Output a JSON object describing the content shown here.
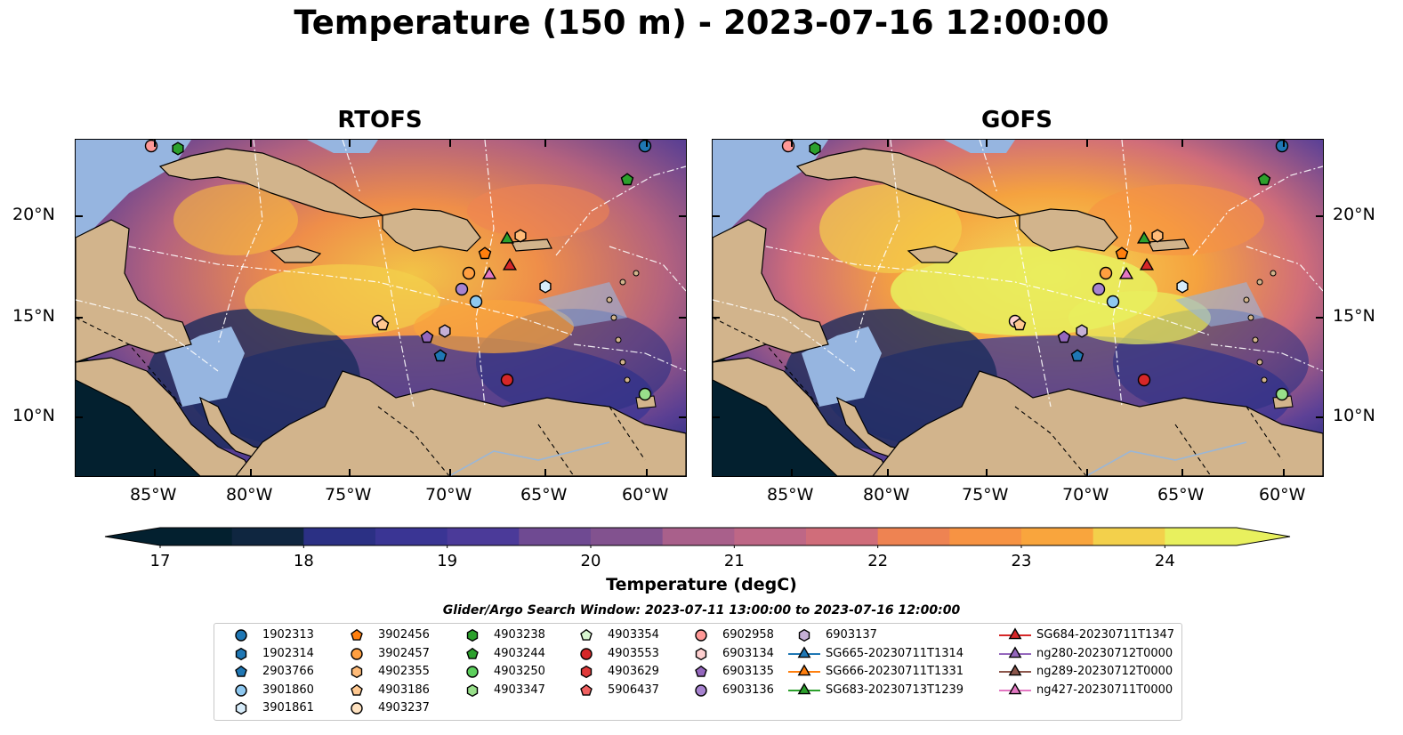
{
  "title": "Temperature (150 m) - 2023-07-16 12:00:00",
  "panels": [
    {
      "title": "RTOFS"
    },
    {
      "title": "GOFS"
    }
  ],
  "x_ticks": [
    "85°W",
    "80°W",
    "75°W",
    "70°W",
    "65°W",
    "60°W"
  ],
  "y_ticks": [
    "20°N",
    "15°N",
    "10°N"
  ],
  "colorbar": {
    "label": "Temperature (degC)",
    "ticks": [
      "17",
      "18",
      "19",
      "20",
      "21",
      "22",
      "23",
      "24"
    ],
    "min": 17.0,
    "max": 24.5,
    "step": 0.5,
    "extend": "both"
  },
  "legend_title": "Glider/Argo Search Window: 2023-07-11 13:00:00 to 2023-07-16 12:00:00",
  "legend_columns": [
    [
      {
        "label": "1902313",
        "marker": "circle",
        "color": "#1f77b4"
      },
      {
        "label": "1902314",
        "marker": "hexagon",
        "color": "#1f77b4"
      },
      {
        "label": "2903766",
        "marker": "pentagon",
        "color": "#1f77b4"
      },
      {
        "label": "3901860",
        "marker": "circle",
        "color": "#8ec8f0"
      },
      {
        "label": "3901861",
        "marker": "hexagon",
        "color": "#d7ecfa"
      }
    ],
    [
      {
        "label": "3902456",
        "marker": "pentagon",
        "color": "#ff7f0e"
      },
      {
        "label": "3902457",
        "marker": "circle",
        "color": "#ff9f40"
      },
      {
        "label": "4902355",
        "marker": "hexagon",
        "color": "#ffbb78"
      },
      {
        "label": "4903186",
        "marker": "pentagon",
        "color": "#ffc890"
      },
      {
        "label": "4903237",
        "marker": "circle",
        "color": "#ffe2c0"
      }
    ],
    [
      {
        "label": "4903238",
        "marker": "hexagon",
        "color": "#2ca02c"
      },
      {
        "label": "4903244",
        "marker": "pentagon",
        "color": "#2ca02c"
      },
      {
        "label": "4903250",
        "marker": "circle",
        "color": "#5ccf5c"
      },
      {
        "label": "4903347",
        "marker": "hexagon",
        "color": "#98df8a"
      }
    ],
    [
      {
        "label": "4903354",
        "marker": "pentagon",
        "color": "#d8f5d0"
      },
      {
        "label": "4903553",
        "marker": "circle",
        "color": "#d62728"
      },
      {
        "label": "4903629",
        "marker": "hexagon",
        "color": "#e03a3a"
      },
      {
        "label": "5906437",
        "marker": "pentagon",
        "color": "#f06060"
      }
    ],
    [
      {
        "label": "6902958",
        "marker": "circle",
        "color": "#ff9896"
      },
      {
        "label": "6903134",
        "marker": "hexagon",
        "color": "#ffd0d0"
      },
      {
        "label": "6903135",
        "marker": "pentagon",
        "color": "#9467bd"
      },
      {
        "label": "6903136",
        "marker": "circle",
        "color": "#a783cf"
      }
    ],
    [
      {
        "label": "6903137",
        "marker": "hexagon",
        "color": "#c5b0d5"
      },
      {
        "label": "SG665-20230711T1314",
        "marker": "triangle-line",
        "color": "#1f77b4"
      },
      {
        "label": "SG666-20230711T1331",
        "marker": "triangle-line",
        "color": "#ff7f0e"
      },
      {
        "label": "SG683-20230713T1239",
        "marker": "triangle-line",
        "color": "#2ca02c"
      }
    ],
    [
      {
        "label": "SG684-20230711T1347",
        "marker": "triangle-line",
        "color": "#d62728"
      },
      {
        "label": "ng280-20230712T0000",
        "marker": "triangle-line",
        "color": "#9467bd"
      },
      {
        "label": "ng289-20230712T0000",
        "marker": "triangle-line",
        "color": "#8c564b"
      },
      {
        "label": "ng427-20230711T0000",
        "marker": "triangle-line",
        "color": "#e377c2"
      }
    ]
  ],
  "colors": {
    "land": "#d2b48c",
    "shelf": "#96b5e0",
    "cmap": [
      "#03202f",
      "#0f2640",
      "#1a2c5c",
      "#2b3084",
      "#3a3594",
      "#4b3a99",
      "#5d4196",
      "#6f4a92",
      "#82528f",
      "#96598c",
      "#a9608b",
      "#be6786",
      "#d06d7a",
      "#e17568",
      "#ee8352",
      "#f79343",
      "#f9a53d",
      "#f8ba3f",
      "#f3d04b",
      "#e8f05e"
    ]
  }
}
